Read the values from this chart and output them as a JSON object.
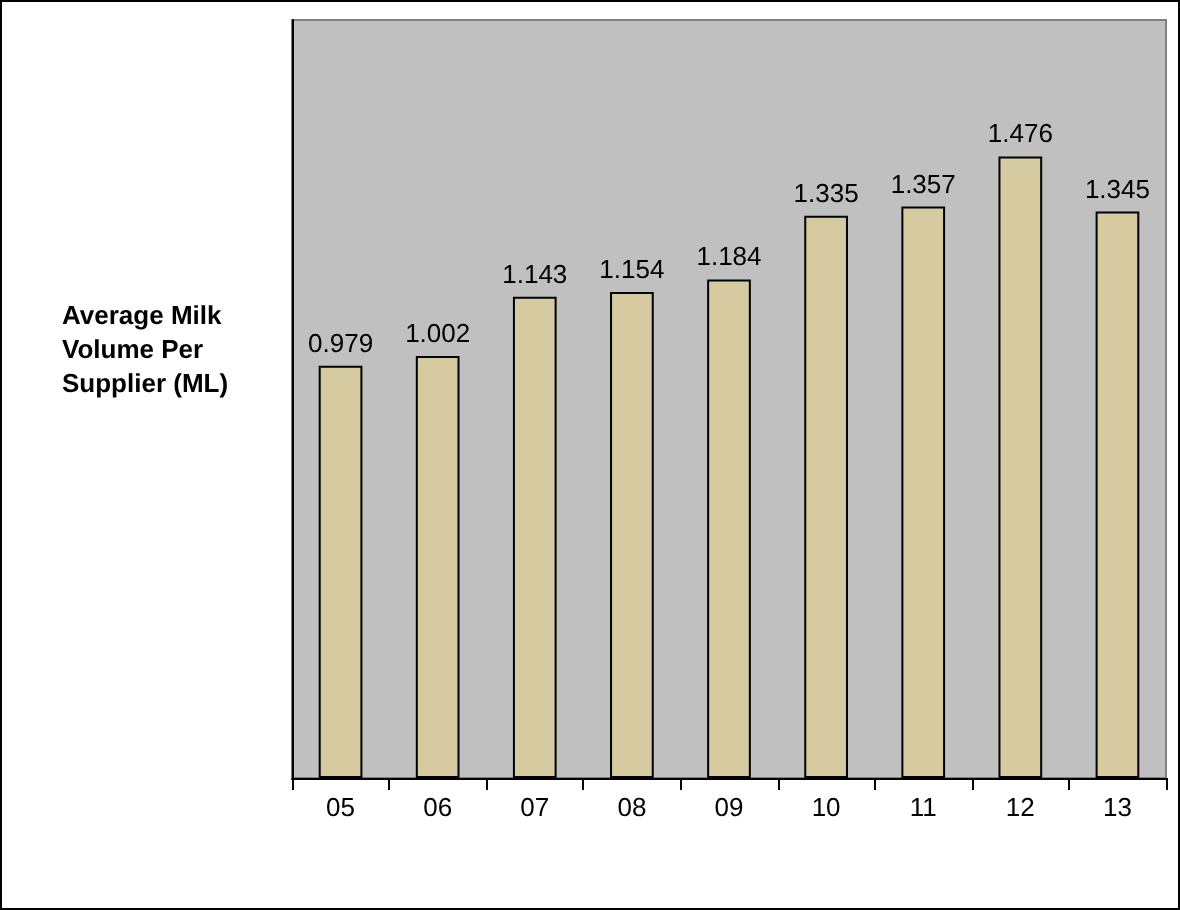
{
  "chart_data": {
    "type": "bar",
    "ylabel": "Average Milk Volume Per Supplier (ML)",
    "categories": [
      "05",
      "06",
      "07",
      "08",
      "09",
      "10",
      "11",
      "12",
      "13"
    ],
    "values": [
      0.979,
      1.002,
      1.143,
      1.154,
      1.184,
      1.335,
      1.357,
      1.476,
      1.345
    ],
    "color": "#d6cba0",
    "data_labels": true,
    "grid": false,
    "tick_labels": "x"
  }
}
